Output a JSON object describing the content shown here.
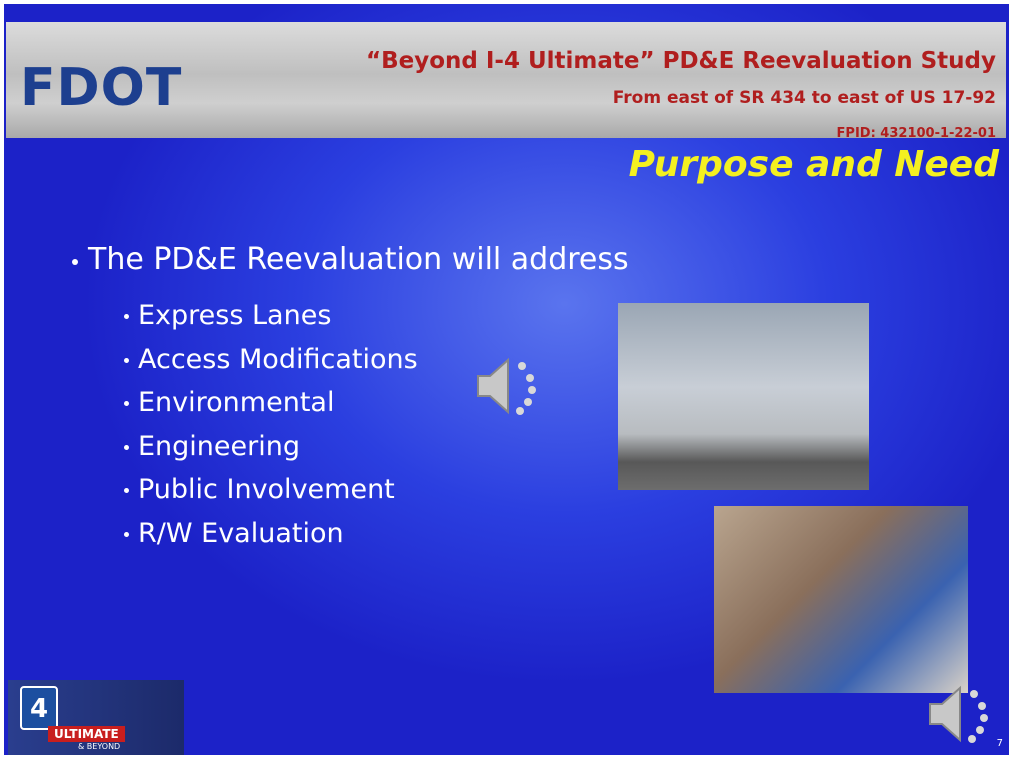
{
  "header": {
    "logo": "FDOT",
    "title": "“Beyond I-4 Ultimate” PD&E Reevaluation Study",
    "subtitle": "From east of SR 434 to east of US 17-92",
    "fpid": "FPID: 432100-1-22-01"
  },
  "slide": {
    "heading": "Purpose and Need",
    "lead": "The PD&E Reevaluation will address",
    "items": [
      "Express Lanes",
      "Access Modifications",
      "Environmental",
      "Engineering",
      "Public Involvement",
      "R/W Evaluation"
    ],
    "page_number": "7"
  },
  "footer_logo": {
    "number": "4",
    "word": "ULTIMATE",
    "tagline": "& BEYOND"
  }
}
